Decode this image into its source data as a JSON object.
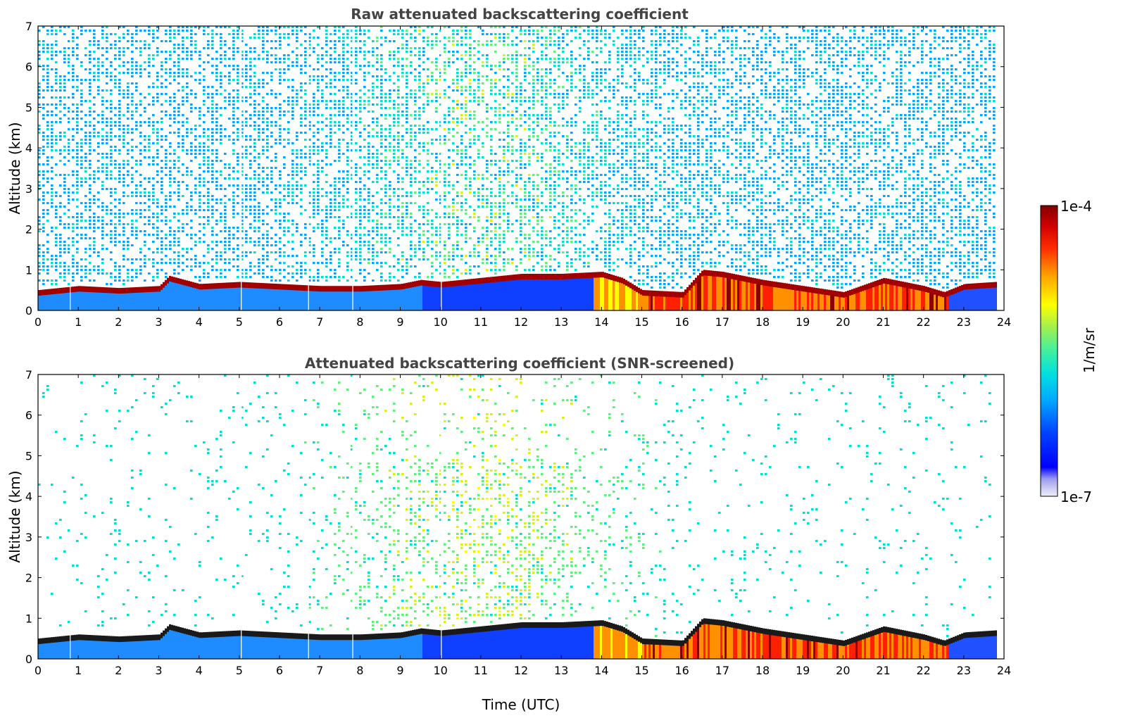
{
  "chart_data": [
    {
      "type": "heatmap",
      "title": "Raw attenuated backscattering coefficient",
      "xlabel": "",
      "ylabel": "Altitude (km)",
      "xlim": [
        0,
        24
      ],
      "ylim": [
        0,
        7
      ],
      "x_ticks": [
        "0",
        "1",
        "2",
        "3",
        "4",
        "5",
        "6",
        "7",
        "8",
        "9",
        "10",
        "11",
        "12",
        "13",
        "14",
        "15",
        "16",
        "17",
        "18",
        "19",
        "20",
        "21",
        "22",
        "23",
        "24"
      ],
      "y_ticks": [
        "0",
        "1",
        "2",
        "3",
        "4",
        "5",
        "6",
        "7"
      ],
      "screened": false,
      "data_end_hour": 23.78,
      "gap_lines_hours": [
        0.8,
        5.05,
        6.72,
        7.82,
        10.02
      ],
      "cloud_layer_top_km": [
        {
          "hour": 0,
          "km": 0.45
        },
        {
          "hour": 1,
          "km": 0.55
        },
        {
          "hour": 2,
          "km": 0.5
        },
        {
          "hour": 3,
          "km": 0.55
        },
        {
          "hour": 3.25,
          "km": 0.8
        },
        {
          "hour": 4,
          "km": 0.6
        },
        {
          "hour": 5,
          "km": 0.65
        },
        {
          "hour": 6,
          "km": 0.6
        },
        {
          "hour": 7,
          "km": 0.55
        },
        {
          "hour": 8,
          "km": 0.55
        },
        {
          "hour": 9,
          "km": 0.6
        },
        {
          "hour": 9.5,
          "km": 0.7
        },
        {
          "hour": 10,
          "km": 0.65
        },
        {
          "hour": 12,
          "km": 0.85
        },
        {
          "hour": 13,
          "km": 0.85
        },
        {
          "hour": 14,
          "km": 0.9
        },
        {
          "hour": 14.5,
          "km": 0.75
        },
        {
          "hour": 15,
          "km": 0.45
        },
        {
          "hour": 16,
          "km": 0.4
        },
        {
          "hour": 16.5,
          "km": 0.95
        },
        {
          "hour": 17,
          "km": 0.9
        },
        {
          "hour": 18,
          "km": 0.7
        },
        {
          "hour": 19,
          "km": 0.55
        },
        {
          "hour": 20,
          "km": 0.4
        },
        {
          "hour": 21,
          "km": 0.75
        },
        {
          "hour": 22,
          "km": 0.55
        },
        {
          "hour": 22.5,
          "km": 0.4
        },
        {
          "hour": 23,
          "km": 0.6
        },
        {
          "hour": 23.78,
          "km": 0.65
        }
      ]
    },
    {
      "type": "heatmap",
      "title": "Attenuated backscattering coefficient (SNR-screened)",
      "xlabel": "Time (UTC)",
      "ylabel": "Altitude (km)",
      "xlim": [
        0,
        24
      ],
      "ylim": [
        0,
        7
      ],
      "x_ticks": [
        "0",
        "1",
        "2",
        "3",
        "4",
        "5",
        "6",
        "7",
        "8",
        "9",
        "10",
        "11",
        "12",
        "13",
        "14",
        "15",
        "16",
        "17",
        "18",
        "19",
        "20",
        "21",
        "22",
        "23",
        "24"
      ],
      "y_ticks": [
        "0",
        "1",
        "2",
        "3",
        "4",
        "5",
        "6",
        "7"
      ],
      "screened": true,
      "data_end_hour": 23.78,
      "gap_lines_hours": [
        0.8,
        5.05,
        6.72,
        7.82,
        10.02
      ]
    }
  ],
  "colorbar": {
    "label": "1/m/sr",
    "min_label": "1e-7",
    "max_label": "1e-4",
    "scale": "log",
    "colormap": "jet",
    "colors": [
      "#e6e6fa",
      "#0000cd",
      "#0000ff",
      "#00bfff",
      "#00e5c0",
      "#7fff7f",
      "#ffff00",
      "#ff8000",
      "#ff0000",
      "#800000"
    ]
  }
}
